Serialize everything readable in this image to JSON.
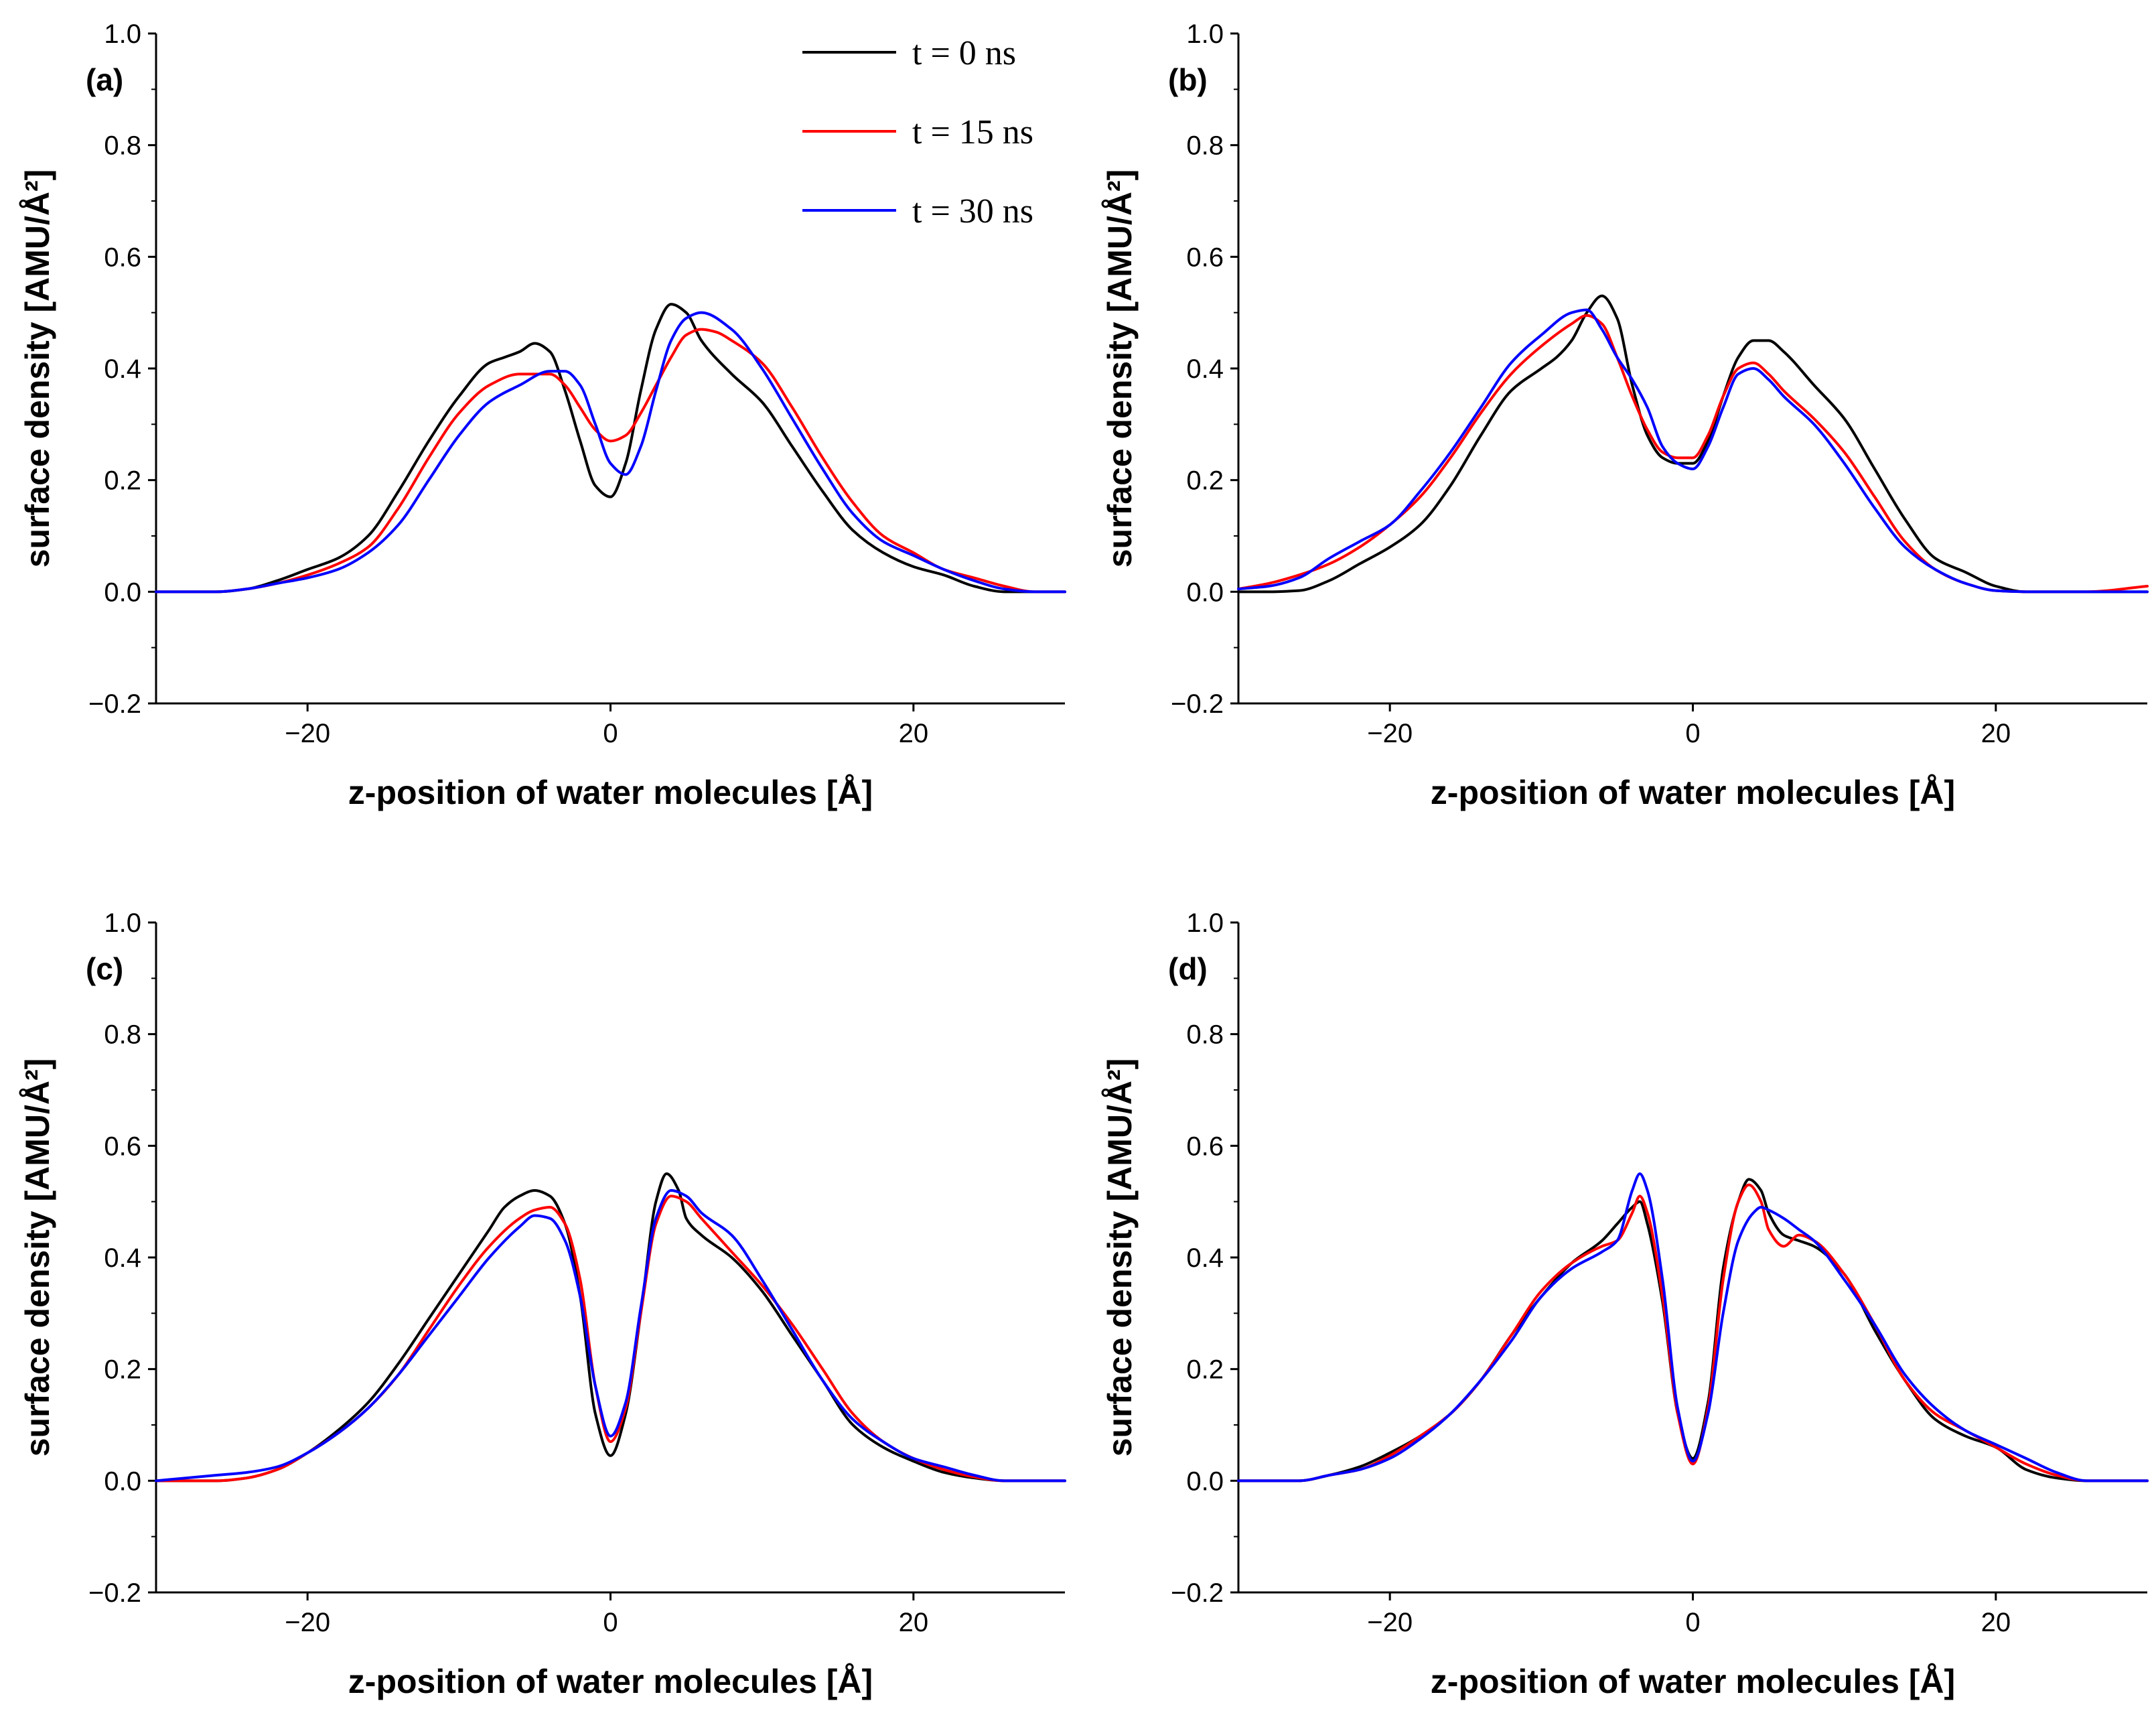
{
  "legend": [
    {
      "label": "t = 0 ns",
      "color": "#000000"
    },
    {
      "label": "t = 15 ns",
      "color": "#ff0000"
    },
    {
      "label": "t = 30 ns",
      "color": "#0000ff"
    }
  ],
  "chart_data": [
    {
      "type": "line",
      "title": "(a)",
      "xlabel": "z-position of water molecules [Å]",
      "ylabel": "surface density [AMU/Å²]",
      "xlim": [
        -30,
        30
      ],
      "ylim": [
        -0.2,
        1.0
      ],
      "xticks": [
        -20,
        0,
        20
      ],
      "yticks": [
        -0.2,
        0.0,
        0.2,
        0.4,
        0.6,
        0.8,
        1.0
      ],
      "series": [
        {
          "name": "t = 0 ns",
          "color": "#000000",
          "x": [
            -30,
            -26,
            -24,
            -22,
            -20,
            -18,
            -16,
            -14,
            -12,
            -10,
            -8,
            -7,
            -6,
            -5,
            -4,
            -3,
            -2,
            -1,
            0,
            1,
            2,
            3,
            4,
            5,
            6,
            8,
            10,
            12,
            14,
            16,
            18,
            20,
            22,
            24,
            26,
            28,
            30
          ],
          "y": [
            0,
            0,
            0.005,
            0.02,
            0.04,
            0.06,
            0.1,
            0.18,
            0.27,
            0.35,
            0.41,
            0.42,
            0.43,
            0.445,
            0.43,
            0.36,
            0.27,
            0.19,
            0.17,
            0.23,
            0.36,
            0.47,
            0.515,
            0.5,
            0.45,
            0.39,
            0.34,
            0.26,
            0.18,
            0.11,
            0.07,
            0.045,
            0.03,
            0.01,
            0,
            0,
            0
          ]
        },
        {
          "name": "t = 15 ns",
          "color": "#ff0000",
          "x": [
            -30,
            -26,
            -24,
            -22,
            -20,
            -18,
            -16,
            -14,
            -12,
            -10,
            -8,
            -6,
            -5,
            -4,
            -3,
            -2,
            -1,
            0,
            1,
            2,
            3,
            4,
            5,
            6,
            7,
            8,
            10,
            12,
            14,
            16,
            18,
            20,
            22,
            24,
            26,
            28,
            30
          ],
          "y": [
            0,
            0,
            0.005,
            0.015,
            0.03,
            0.05,
            0.08,
            0.15,
            0.24,
            0.32,
            0.37,
            0.39,
            0.39,
            0.39,
            0.37,
            0.33,
            0.29,
            0.27,
            0.28,
            0.32,
            0.37,
            0.42,
            0.46,
            0.47,
            0.465,
            0.45,
            0.41,
            0.33,
            0.24,
            0.16,
            0.1,
            0.07,
            0.04,
            0.025,
            0.01,
            0,
            0
          ]
        },
        {
          "name": "t = 30 ns",
          "color": "#0000ff",
          "x": [
            -30,
            -26,
            -24,
            -22,
            -20,
            -18,
            -16,
            -14,
            -12,
            -10,
            -8,
            -6,
            -4,
            -3,
            -2,
            -1,
            0,
            1,
            2,
            3,
            4,
            5,
            6,
            8,
            10,
            12,
            14,
            16,
            18,
            20,
            22,
            24,
            26,
            28,
            30
          ],
          "y": [
            0,
            0,
            0.005,
            0.015,
            0.025,
            0.04,
            0.07,
            0.12,
            0.2,
            0.28,
            0.34,
            0.37,
            0.395,
            0.395,
            0.37,
            0.3,
            0.23,
            0.21,
            0.26,
            0.36,
            0.45,
            0.49,
            0.5,
            0.47,
            0.4,
            0.31,
            0.22,
            0.14,
            0.09,
            0.065,
            0.04,
            0.02,
            0.005,
            0,
            0
          ]
        }
      ]
    },
    {
      "type": "line",
      "title": "(b)",
      "xlabel": "z-position of water molecules [Å]",
      "ylabel": "surface density [AMU/Å²]",
      "xlim": [
        -30,
        30
      ],
      "ylim": [
        -0.2,
        1.0
      ],
      "xticks": [
        -20,
        0,
        20
      ],
      "yticks": [
        -0.2,
        0.0,
        0.2,
        0.4,
        0.6,
        0.8,
        1.0
      ],
      "series": [
        {
          "name": "t = 0 ns",
          "color": "#000000",
          "x": [
            -30,
            -28,
            -26,
            -24,
            -22,
            -20,
            -18,
            -16,
            -14,
            -12,
            -10,
            -9,
            -8,
            -7,
            -6,
            -5,
            -4,
            -3,
            -2,
            -1,
            0,
            1,
            2,
            3,
            4,
            5,
            6,
            8,
            10,
            12,
            14,
            16,
            18,
            20,
            22,
            26,
            30
          ],
          "y": [
            0,
            0,
            0.002,
            0.02,
            0.05,
            0.08,
            0.12,
            0.19,
            0.28,
            0.36,
            0.4,
            0.42,
            0.45,
            0.5,
            0.53,
            0.49,
            0.37,
            0.28,
            0.24,
            0.23,
            0.23,
            0.27,
            0.35,
            0.42,
            0.45,
            0.45,
            0.43,
            0.37,
            0.31,
            0.22,
            0.13,
            0.06,
            0.035,
            0.01,
            0,
            0,
            0
          ]
        },
        {
          "name": "t = 15 ns",
          "color": "#ff0000",
          "x": [
            -30,
            -28,
            -26,
            -24,
            -22,
            -20,
            -18,
            -16,
            -14,
            -12,
            -10,
            -8,
            -7,
            -6,
            -5,
            -4,
            -3,
            -2,
            -1,
            0,
            1,
            2,
            3,
            4,
            5,
            6,
            8,
            10,
            12,
            14,
            16,
            18,
            20,
            22,
            26,
            30
          ],
          "y": [
            0.005,
            0.015,
            0.03,
            0.05,
            0.08,
            0.12,
            0.17,
            0.24,
            0.32,
            0.39,
            0.44,
            0.48,
            0.495,
            0.48,
            0.42,
            0.35,
            0.29,
            0.25,
            0.24,
            0.24,
            0.28,
            0.35,
            0.4,
            0.41,
            0.39,
            0.36,
            0.31,
            0.25,
            0.17,
            0.09,
            0.04,
            0.015,
            0.002,
            0,
            0,
            0.01
          ]
        },
        {
          "name": "t = 30 ns",
          "color": "#0000ff",
          "x": [
            -30,
            -28,
            -26,
            -24,
            -22,
            -20,
            -18,
            -16,
            -14,
            -12,
            -10,
            -8,
            -7,
            -6,
            -5,
            -4,
            -3,
            -2,
            -1,
            0,
            1,
            2,
            3,
            4,
            5,
            6,
            8,
            10,
            12,
            14,
            16,
            18,
            20,
            22,
            26,
            30
          ],
          "y": [
            0.005,
            0.01,
            0.025,
            0.06,
            0.09,
            0.12,
            0.18,
            0.25,
            0.33,
            0.41,
            0.46,
            0.5,
            0.505,
            0.47,
            0.42,
            0.38,
            0.33,
            0.26,
            0.23,
            0.22,
            0.26,
            0.33,
            0.39,
            0.4,
            0.38,
            0.35,
            0.3,
            0.23,
            0.15,
            0.08,
            0.04,
            0.015,
            0.002,
            0,
            0,
            0
          ]
        }
      ]
    },
    {
      "type": "line",
      "title": "(c)",
      "xlabel": "z-position of water molecules [Å]",
      "ylabel": "surface density [AMU/Å²]",
      "xlim": [
        -30,
        30
      ],
      "ylim": [
        -0.2,
        1.0
      ],
      "xticks": [
        -20,
        0,
        20
      ],
      "yticks": [
        -0.2,
        0.0,
        0.2,
        0.4,
        0.6,
        0.8,
        1.0
      ],
      "series": [
        {
          "name": "t = 0 ns",
          "color": "#000000",
          "x": [
            -30,
            -26,
            -24,
            -22,
            -20,
            -18,
            -16,
            -14,
            -12,
            -10,
            -8,
            -7,
            -6,
            -5,
            -4,
            -3,
            -2,
            -1,
            0,
            1,
            2,
            3,
            3.7,
            4.5,
            5,
            6,
            8,
            10,
            12,
            14,
            16,
            18,
            20,
            22,
            24,
            26,
            30
          ],
          "y": [
            0,
            0,
            0.005,
            0.02,
            0.05,
            0.09,
            0.14,
            0.21,
            0.29,
            0.37,
            0.45,
            0.49,
            0.51,
            0.52,
            0.51,
            0.46,
            0.33,
            0.12,
            0.045,
            0.12,
            0.3,
            0.5,
            0.55,
            0.52,
            0.47,
            0.44,
            0.4,
            0.34,
            0.26,
            0.18,
            0.1,
            0.06,
            0.035,
            0.015,
            0.005,
            0,
            0
          ]
        },
        {
          "name": "t = 15 ns",
          "color": "#ff0000",
          "x": [
            -30,
            -26,
            -24,
            -22,
            -20,
            -18,
            -16,
            -14,
            -12,
            -10,
            -8,
            -6,
            -5,
            -4,
            -3,
            -2,
            -1,
            0,
            1,
            2,
            3,
            4,
            5,
            6,
            8,
            10,
            12,
            14,
            16,
            18,
            20,
            22,
            24,
            26,
            30
          ],
          "y": [
            0,
            0,
            0.005,
            0.02,
            0.05,
            0.085,
            0.13,
            0.19,
            0.27,
            0.35,
            0.42,
            0.47,
            0.485,
            0.49,
            0.46,
            0.36,
            0.17,
            0.07,
            0.13,
            0.3,
            0.46,
            0.51,
            0.5,
            0.47,
            0.41,
            0.35,
            0.28,
            0.2,
            0.12,
            0.07,
            0.04,
            0.02,
            0.007,
            0,
            0
          ]
        },
        {
          "name": "t = 30 ns",
          "color": "#0000ff",
          "x": [
            -30,
            -26,
            -24,
            -22,
            -20,
            -18,
            -16,
            -14,
            -12,
            -10,
            -8,
            -6,
            -5,
            -4,
            -3,
            -2,
            -1,
            0,
            1,
            2,
            3,
            4,
            5,
            6,
            8,
            10,
            12,
            14,
            16,
            18,
            20,
            22,
            24,
            26,
            30
          ],
          "y": [
            0,
            0.01,
            0.015,
            0.025,
            0.05,
            0.085,
            0.13,
            0.19,
            0.26,
            0.33,
            0.4,
            0.455,
            0.475,
            0.47,
            0.43,
            0.33,
            0.17,
            0.08,
            0.14,
            0.31,
            0.47,
            0.52,
            0.51,
            0.48,
            0.44,
            0.36,
            0.27,
            0.18,
            0.11,
            0.07,
            0.04,
            0.025,
            0.01,
            0,
            0
          ]
        }
      ]
    },
    {
      "type": "line",
      "title": "(d)",
      "xlabel": "z-position of water molecules [Å]",
      "ylabel": "surface density [AMU/Å²]",
      "xlim": [
        -30,
        30
      ],
      "ylim": [
        -0.2,
        1.0
      ],
      "xticks": [
        -20,
        0,
        20
      ],
      "yticks": [
        -0.2,
        0.0,
        0.2,
        0.4,
        0.6,
        0.8,
        1.0
      ],
      "series": [
        {
          "name": "t = 0 ns",
          "color": "#000000",
          "x": [
            -30,
            -26,
            -24,
            -22,
            -20,
            -18,
            -16,
            -14,
            -12,
            -10,
            -8,
            -6,
            -5,
            -4,
            -3.5,
            -3,
            -2,
            -1,
            0,
            1,
            2,
            3,
            3.7,
            4.5,
            5,
            6,
            7,
            8,
            10,
            12,
            14,
            16,
            18,
            20,
            22,
            24,
            26,
            30
          ],
          "y": [
            0,
            0,
            0.01,
            0.025,
            0.05,
            0.08,
            0.12,
            0.18,
            0.26,
            0.33,
            0.39,
            0.43,
            0.46,
            0.49,
            0.5,
            0.46,
            0.32,
            0.12,
            0.04,
            0.14,
            0.38,
            0.5,
            0.54,
            0.52,
            0.48,
            0.44,
            0.43,
            0.42,
            0.37,
            0.27,
            0.18,
            0.11,
            0.08,
            0.06,
            0.02,
            0.005,
            0,
            0
          ]
        },
        {
          "name": "t = 15 ns",
          "color": "#ff0000",
          "x": [
            -30,
            -26,
            -24,
            -22,
            -20,
            -18,
            -16,
            -14,
            -12,
            -10,
            -8,
            -6,
            -5,
            -4,
            -3.5,
            -3,
            -2,
            -1,
            0,
            1,
            2,
            3,
            3.7,
            4.5,
            5,
            6,
            7,
            8,
            10,
            12,
            14,
            16,
            18,
            20,
            22,
            24,
            26,
            30
          ],
          "y": [
            0,
            0,
            0.01,
            0.02,
            0.045,
            0.08,
            0.12,
            0.18,
            0.26,
            0.34,
            0.39,
            0.42,
            0.43,
            0.48,
            0.51,
            0.48,
            0.33,
            0.12,
            0.03,
            0.13,
            0.36,
            0.5,
            0.53,
            0.5,
            0.45,
            0.42,
            0.44,
            0.43,
            0.37,
            0.28,
            0.18,
            0.12,
            0.09,
            0.06,
            0.03,
            0.01,
            0,
            0
          ]
        },
        {
          "name": "t = 30 ns",
          "color": "#0000ff",
          "x": [
            -30,
            -26,
            -24,
            -22,
            -20,
            -18,
            -16,
            -14,
            -12,
            -10,
            -8,
            -6,
            -5,
            -4,
            -3.5,
            -3,
            -2,
            -1,
            0,
            1,
            2,
            3,
            4,
            4.5,
            5,
            6,
            7,
            8,
            10,
            12,
            14,
            16,
            18,
            20,
            22,
            24,
            26,
            30
          ],
          "y": [
            0,
            0,
            0.01,
            0.02,
            0.04,
            0.075,
            0.12,
            0.18,
            0.25,
            0.33,
            0.38,
            0.41,
            0.43,
            0.52,
            0.55,
            0.52,
            0.36,
            0.13,
            0.035,
            0.12,
            0.3,
            0.43,
            0.48,
            0.49,
            0.485,
            0.47,
            0.45,
            0.43,
            0.36,
            0.28,
            0.19,
            0.13,
            0.09,
            0.065,
            0.04,
            0.015,
            0,
            0
          ]
        }
      ]
    }
  ]
}
